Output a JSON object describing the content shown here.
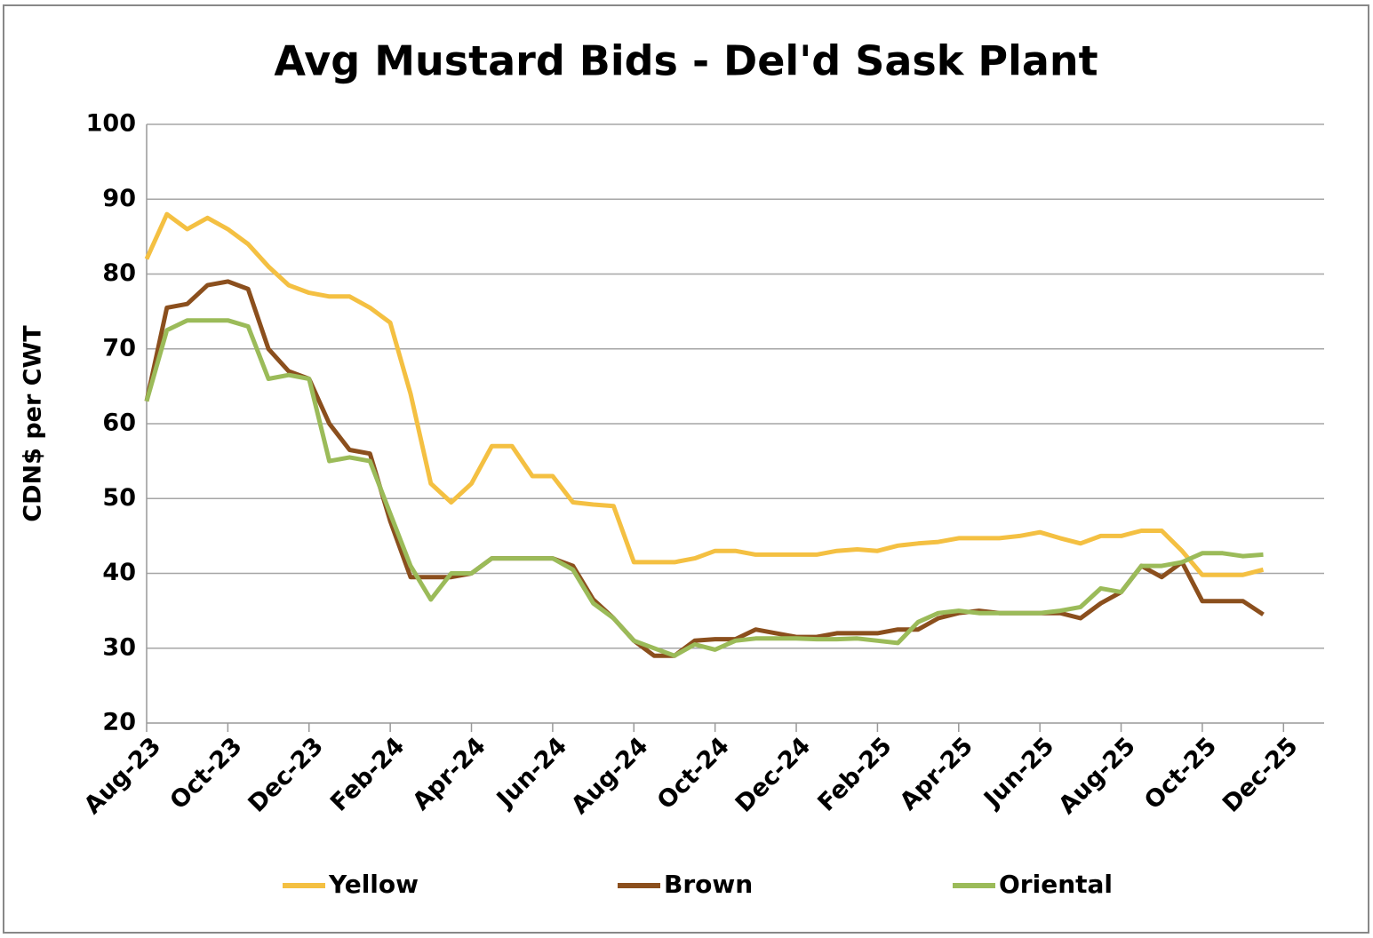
{
  "chart_data": {
    "type": "line",
    "title": "Avg Mustard Bids - Del'd Sask Plant",
    "y_label": "CDN$ per CWT",
    "categories": [
      "Aug-23",
      null,
      null,
      null,
      "Oct-23",
      null,
      null,
      null,
      "Dec-23",
      null,
      null,
      null,
      "Feb-24",
      null,
      null,
      null,
      "Apr-24",
      null,
      null,
      null,
      "Jun-24",
      null,
      null,
      null,
      "Aug-24",
      null,
      null,
      null,
      "Oct-24",
      null,
      null,
      null,
      "Dec-24",
      null,
      null,
      null,
      "Feb-25",
      null,
      null,
      null,
      "Apr-25",
      null,
      null,
      null,
      "Jun-25",
      null,
      null,
      null,
      "Aug-25",
      null,
      null,
      null,
      "Oct-25",
      null,
      null,
      null,
      "Dec-25",
      null,
      null
    ],
    "series": [
      {
        "name": "Yellow",
        "color": "#f4c042",
        "values": [
          82,
          88,
          86,
          87.5,
          86,
          84,
          81,
          78.5,
          77.5,
          77,
          77,
          75.5,
          73.5,
          64,
          52,
          49.5,
          52,
          57,
          57,
          53,
          53,
          49.5,
          49.2,
          49,
          41.5,
          41.5,
          41.5,
          42,
          43,
          43,
          42.5,
          42.5,
          42.5,
          42.5,
          43,
          43.2,
          43,
          43.7,
          44,
          44.2,
          44.7,
          44.7,
          44.7,
          45,
          45.5,
          44.7,
          44,
          45,
          45,
          45.7,
          45.7,
          43,
          39.8,
          39.8,
          39.8,
          40.5,
          null,
          null,
          null
        ]
      },
      {
        "name": "Brown",
        "color": "#8b4f1d",
        "values": [
          63,
          75.5,
          76,
          78.5,
          79,
          78,
          70,
          67,
          66,
          60,
          56.5,
          56,
          47,
          39.5,
          39.5,
          39.5,
          40,
          42,
          42,
          42,
          42,
          41,
          36.5,
          34,
          31,
          29,
          29,
          31,
          31.2,
          31.2,
          32.5,
          32,
          31.5,
          31.5,
          32,
          32,
          32,
          32.5,
          32.5,
          34,
          34.7,
          35,
          34.7,
          34.7,
          34.7,
          34.7,
          34,
          36,
          37.5,
          41,
          39.5,
          41.5,
          36.3,
          36.3,
          36.3,
          34.5,
          null,
          null,
          null
        ]
      },
      {
        "name": "Oriental",
        "color": "#9bbb59",
        "values": [
          63,
          72.5,
          73.8,
          73.8,
          73.8,
          73,
          66,
          66.5,
          66,
          55,
          55.5,
          55,
          48,
          41,
          36.5,
          40,
          40,
          42,
          42,
          42,
          42,
          40.5,
          36,
          34,
          31,
          30,
          29,
          30.5,
          29.8,
          31,
          31.3,
          31.3,
          31.3,
          31.2,
          31.2,
          31.3,
          31,
          30.7,
          33.5,
          34.7,
          35,
          34.7,
          34.7,
          34.7,
          34.7,
          35,
          35.5,
          38,
          37.5,
          41,
          41,
          41.5,
          42.7,
          42.7,
          42.3,
          42.5,
          null,
          null,
          null
        ]
      }
    ],
    "ylim": [
      20,
      100
    ],
    "yticks": [
      20,
      30,
      40,
      50,
      60,
      70,
      80,
      90,
      100
    ],
    "grid": true,
    "legend": "bottom"
  }
}
